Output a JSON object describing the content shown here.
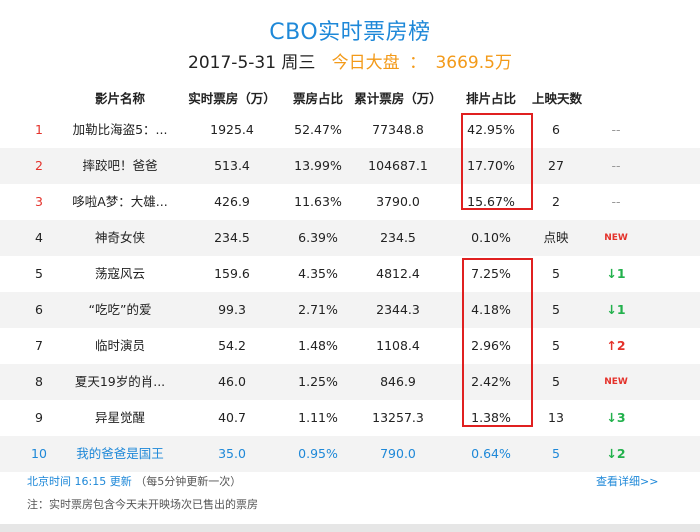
{
  "header": {
    "title": "CBO实时票房榜",
    "date": "2017-5-31 周三",
    "market_label": "今日大盘",
    "market_sep": "：",
    "market_value": "3669.5万"
  },
  "columns": {
    "name": "影片名称",
    "realtime_bo": "实时票房（万）",
    "share": "票房占比",
    "total_bo": "累计票房（万）",
    "screening": "排片占比",
    "days": "上映天数"
  },
  "rows": [
    {
      "rank": "1",
      "name": "加勒比海盗5：...",
      "bo": "1925.4",
      "share": "52.47%",
      "total": "77348.8",
      "screen": "42.95%",
      "days": "6",
      "trend": "--"
    },
    {
      "rank": "2",
      "name": "摔跤吧！爸爸",
      "bo": "513.4",
      "share": "13.99%",
      "total": "104687.1",
      "screen": "17.70%",
      "days": "27",
      "trend": "--"
    },
    {
      "rank": "3",
      "name": "哆啦A梦：大雄...",
      "bo": "426.9",
      "share": "11.63%",
      "total": "3790.0",
      "screen": "15.67%",
      "days": "2",
      "trend": "--"
    },
    {
      "rank": "4",
      "name": "神奇女侠",
      "bo": "234.5",
      "share": "6.39%",
      "total": "234.5",
      "screen": "0.10%",
      "days": "点映",
      "trend": "NEW"
    },
    {
      "rank": "5",
      "name": "荡寇风云",
      "bo": "159.6",
      "share": "4.35%",
      "total": "4812.4",
      "screen": "7.25%",
      "days": "5",
      "trend": "↓1"
    },
    {
      "rank": "6",
      "name": "“吃吃”的爱",
      "bo": "99.3",
      "share": "2.71%",
      "total": "2344.3",
      "screen": "4.18%",
      "days": "5",
      "trend": "↓1"
    },
    {
      "rank": "7",
      "name": "临时演员",
      "bo": "54.2",
      "share": "1.48%",
      "total": "1108.4",
      "screen": "2.96%",
      "days": "5",
      "trend": "↑2"
    },
    {
      "rank": "8",
      "name": "夏天19岁的肖...",
      "bo": "46.0",
      "share": "1.25%",
      "total": "846.9",
      "screen": "2.42%",
      "days": "5",
      "trend": "NEW"
    },
    {
      "rank": "9",
      "name": "异星觉醒",
      "bo": "40.7",
      "share": "1.11%",
      "total": "13257.3",
      "screen": "1.38%",
      "days": "13",
      "trend": "↓3"
    },
    {
      "rank": "10",
      "name": "我的爸爸是国王",
      "bo": "35.0",
      "share": "0.95%",
      "total": "790.0",
      "screen": "0.64%",
      "days": "5",
      "trend": "↓2"
    }
  ],
  "footer": {
    "update_time": "北京时间 16:15 更新",
    "update_note": "（每5分钟更新一次）",
    "more_link": "查看详细>>",
    "note": "注：实时票房包含今天未开映场次已售出的票房"
  },
  "colors": {
    "accent_blue": "#1e88d8",
    "accent_orange": "#f39a19",
    "rank_red": "#e4322b",
    "trend_green": "#22b14c",
    "annotation_red": "#e02020"
  }
}
